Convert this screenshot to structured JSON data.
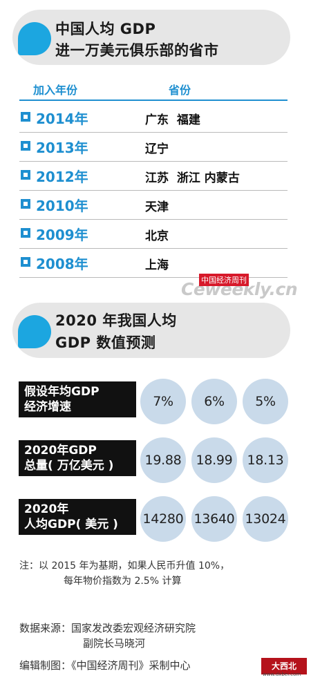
{
  "header1": {
    "line1": "中国人均 GDP",
    "line2": "进一万美元俱乐部的省市"
  },
  "table": {
    "col_year": "加入年份",
    "col_province": "省份",
    "rows": [
      {
        "year": "2014年",
        "provinces": "广东  福建"
      },
      {
        "year": "2013年",
        "provinces": "辽宁"
      },
      {
        "year": "2012年",
        "provinces": "江苏  浙江 内蒙古"
      },
      {
        "year": "2010年",
        "provinces": "天津"
      },
      {
        "year": "2009年",
        "provinces": "北京"
      },
      {
        "year": "2008年",
        "provinces": "上海"
      }
    ]
  },
  "watermark": {
    "box": "中国经济周刊",
    "text": "Ceweekly.cn"
  },
  "header2": {
    "line1": "2020 年我国人均",
    "line2": "GDP 数值预测"
  },
  "prediction": {
    "rows": [
      {
        "label_line1": "假设年均GDP",
        "label_line2": "经济增速",
        "values": [
          "7%",
          "6%",
          "5%"
        ]
      },
      {
        "label_line1": "2020年GDP",
        "label_line2": "总量( 万亿美元 )",
        "values": [
          "19.88",
          "18.99",
          "18.13"
        ]
      },
      {
        "label_line1": "2020年",
        "label_line2": "人均GDP( 美元 )",
        "values": [
          "14280",
          "13640",
          "13024"
        ]
      }
    ]
  },
  "note": {
    "line1": "注：以 2015 年为基期，如果人民币升值 10%，",
    "line2": "每年物价指数为 2.5% 计算"
  },
  "source": {
    "line1": "数据来源：国家发改委宏观经济研究院",
    "line2": "副院长马晓河",
    "line3": "编辑制图：《中国经济周刊》采制中心"
  },
  "corner_logo": {
    "text": "大西北",
    "sub": "www.dxbei.com"
  },
  "colors": {
    "accent": "#1e8fd0",
    "blob": "#1ca6e0",
    "circle": "#c9daea",
    "label_bg": "#111111",
    "header_bg": "#e6e6e6"
  }
}
